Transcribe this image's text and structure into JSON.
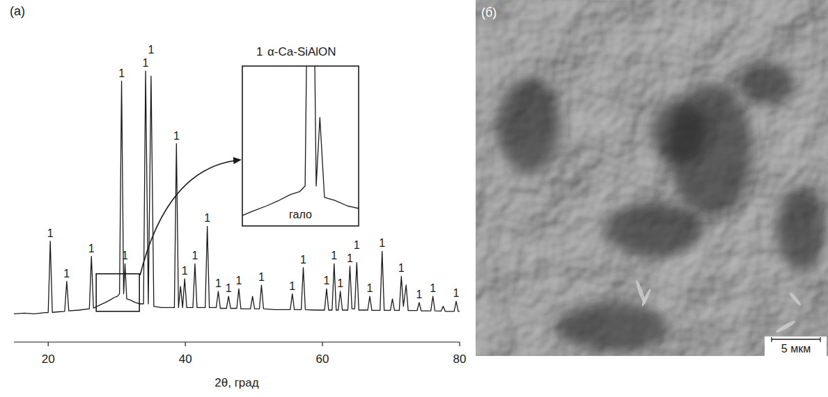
{
  "chart_data": {
    "type": "line",
    "panel_label": "(а)",
    "x_label": "2θ, град",
    "xlim": [
      15,
      80
    ],
    "xticks": [
      20,
      40,
      60,
      80
    ],
    "ylim": [
      0,
      100
    ],
    "tick_labels": "x",
    "legend": "top",
    "series": [
      {
        "name": "α-Ca-SiAlON",
        "label": "1",
        "color": "#1a1a1a",
        "x": [
          15.0,
          16.5,
          18.0,
          19.5,
          20.0,
          20.3,
          20.6,
          21.5,
          22.4,
          22.7,
          23.0,
          24.5,
          26.0,
          26.3,
          26.6,
          27.5,
          28.3,
          29.0,
          29.6,
          30.1,
          30.4,
          30.7,
          31.0,
          31.2,
          31.45,
          32.0,
          32.7,
          33.4,
          33.9,
          34.2,
          34.6,
          35.0,
          35.4,
          36.5,
          37.5,
          38.4,
          38.7,
          39.0,
          39.3,
          39.6,
          39.9,
          40.2,
          41.1,
          41.4,
          41.7,
          42.9,
          43.2,
          43.5,
          44.5,
          44.8,
          45.1,
          46.0,
          46.3,
          46.6,
          47.5,
          47.8,
          48.1,
          49.5,
          49.8,
          50.1,
          50.8,
          51.1,
          51.4,
          53.0,
          55.3,
          55.6,
          55.9,
          56.9,
          57.2,
          57.5,
          59.0,
          60.3,
          60.6,
          60.9,
          61.4,
          61.7,
          62.0,
          62.3,
          62.6,
          62.9,
          63.7,
          64.0,
          64.3,
          64.7,
          65.0,
          65.3,
          66.6,
          66.9,
          67.2,
          68.4,
          68.7,
          69.0,
          69.9,
          70.2,
          70.5,
          71.2,
          71.5,
          71.8,
          72.2,
          72.5,
          73.8,
          74.1,
          74.4,
          75.8,
          76.1,
          76.4,
          77.3,
          77.6,
          77.9,
          79.2,
          79.5,
          79.8,
          80.0
        ],
        "values": [
          1.0,
          1.3,
          1.0,
          1.5,
          1.5,
          30,
          1.6,
          1.8,
          2.0,
          14,
          2.2,
          2.5,
          3.0,
          24,
          3.3,
          4.5,
          5.5,
          6.5,
          7.5,
          8,
          9,
          94,
          9,
          21,
          7,
          6.5,
          5.5,
          5,
          5,
          98,
          5,
          96,
          4,
          3.5,
          3.5,
          3.5,
          69,
          3.5,
          12,
          3.5,
          15,
          3.5,
          3.5,
          21,
          3.5,
          3.5,
          36,
          3.5,
          3.5,
          10,
          3.2,
          3.2,
          8,
          3.2,
          3.2,
          11,
          3.0,
          3.0,
          8,
          3.0,
          3.0,
          12.5,
          3.0,
          2.7,
          2.7,
          9,
          2.7,
          2.7,
          19.5,
          2.7,
          2.5,
          2.5,
          11,
          2.5,
          2.5,
          21,
          2.5,
          2.5,
          10,
          2.5,
          2.5,
          20,
          3.0,
          3.0,
          21.5,
          2.5,
          2.5,
          8,
          2.4,
          2.4,
          26,
          2.4,
          2.4,
          7,
          2.4,
          2.4,
          16,
          4,
          12.5,
          2.3,
          2.3,
          5.5,
          2.2,
          2.2,
          8,
          2.2,
          2.1,
          4,
          2.0,
          2.0,
          6,
          2.0,
          2.0
        ]
      }
    ],
    "annotations": [
      {
        "x": 20.3,
        "text": "1"
      },
      {
        "x": 22.7,
        "text": "1"
      },
      {
        "x": 26.3,
        "text": "1"
      },
      {
        "x": 30.7,
        "text": "1"
      },
      {
        "x": 31.2,
        "text": "1"
      },
      {
        "x": 34.2,
        "text": "1"
      },
      {
        "x": 35.0,
        "text": "1"
      },
      {
        "x": 38.7,
        "text": "1"
      },
      {
        "x": 39.9,
        "text": "1"
      },
      {
        "x": 41.4,
        "text": "1"
      },
      {
        "x": 43.2,
        "text": "1"
      },
      {
        "x": 44.8,
        "text": "1"
      },
      {
        "x": 46.3,
        "text": "1"
      },
      {
        "x": 47.8,
        "text": "1"
      },
      {
        "x": 51.1,
        "text": "1"
      },
      {
        "x": 55.6,
        "text": "1"
      },
      {
        "x": 57.2,
        "text": "1"
      },
      {
        "x": 60.6,
        "text": "1"
      },
      {
        "x": 61.7,
        "text": "1"
      },
      {
        "x": 62.6,
        "text": "1"
      },
      {
        "x": 64.0,
        "text": "1"
      },
      {
        "x": 65.0,
        "text": "1"
      },
      {
        "x": 66.9,
        "text": "1"
      },
      {
        "x": 68.7,
        "text": "1"
      },
      {
        "x": 71.5,
        "text": "1"
      },
      {
        "x": 74.1,
        "text": "1"
      },
      {
        "x": 76.1,
        "text": "1"
      },
      {
        "x": 79.5,
        "text": "1"
      }
    ],
    "inset": {
      "xlim": [
        27,
        33.3
      ],
      "ylim": [
        2,
        30
      ],
      "source_ylim": [
        2,
        17
      ],
      "text": "гало"
    }
  },
  "image_panel": {
    "type": "sem_image",
    "label": "(б)",
    "scale_bar": "5 мкм"
  }
}
